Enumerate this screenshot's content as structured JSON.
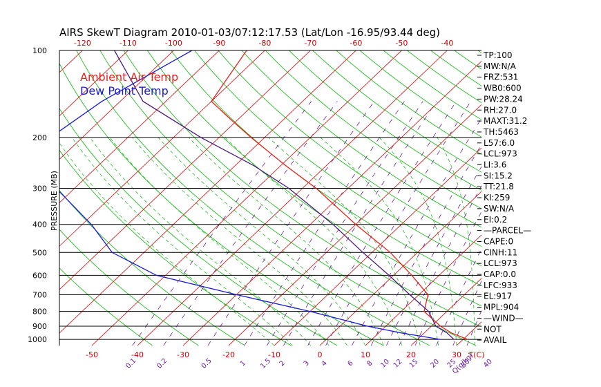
{
  "title": "AIRS SkewT Diagram 2010-01-03/07:12:17.53 (Lat/Lon -16.95/93.44 deg)",
  "ylabel": "PRESSURE (MB)",
  "legend": {
    "air": "Ambient Air Temp",
    "dew": "Dew Point Temp"
  },
  "colors": {
    "air": "#e8201a",
    "dew": "#1a1ad6",
    "parcel": "#4b1a7a",
    "isotherm": "#d42020",
    "dry_adiabat": "#22bb22",
    "moist_adiabat": "#22bb22",
    "mixing_ratio": "#6a1b9a",
    "isobar": "#000000"
  },
  "stats": [
    "TP:100",
    "MW:N/A",
    "FRZ:531",
    "WB0:600",
    "PW:28.24",
    "RH:27.0",
    "MAXT:31.2",
    "TH:5463",
    "L57:6.0",
    "LCL:973",
    "LI:3.6",
    "SI:15.2",
    "TT:21.8",
    "KI:259",
    "SW:N/A",
    "EI:0.2",
    "—PARCEL—",
    "CAPE:0",
    "CINH:11",
    "LCL:973",
    "CAP:0.0",
    "LFC:933",
    "EL:917",
    "MPL:904",
    "—WIND—",
    "NOT",
    "AVAIL"
  ],
  "chart_data": {
    "type": "line",
    "title": "AIRS SkewT Diagram 2010-01-03/07:12:17.53 (Lat/Lon -16.95/93.44 deg)",
    "ylabel": "PRESSURE (MB)",
    "xlabel": "T(C)",
    "y_scale": "log",
    "ylim": [
      1050,
      100
    ],
    "pressure_ticks": [
      "100",
      "200",
      "300",
      "400",
      "500",
      "600",
      "700",
      "800",
      "900",
      "1000"
    ],
    "top_temp_ticks": [
      "-120",
      "-110",
      "-100",
      "-90",
      "-80",
      "-70",
      "-60",
      "-50",
      "-40"
    ],
    "bottom_temp_ticks": [
      "-50",
      "-40",
      "-30",
      "-20",
      "-10",
      "0",
      "10",
      "20",
      "30",
      "T(C)"
    ],
    "mixing_ratio_ticks": [
      "0.1",
      "0.2",
      "0.5",
      "1",
      "1.5",
      "2",
      "3",
      "4",
      "6",
      "8",
      "10",
      "12",
      "15",
      "20",
      "25",
      "30",
      "40",
      "Q(g/kg)"
    ],
    "grid": true,
    "series": [
      {
        "name": "Ambient Air Temp",
        "points": [
          {
            "p": 100,
            "t": -84
          },
          {
            "p": 150,
            "t": -80
          },
          {
            "p": 175,
            "t": -71
          },
          {
            "p": 200,
            "t": -63
          },
          {
            "p": 250,
            "t": -49
          },
          {
            "p": 300,
            "t": -37
          },
          {
            "p": 400,
            "t": -20
          },
          {
            "p": 500,
            "t": -6
          },
          {
            "p": 600,
            "t": 4
          },
          {
            "p": 700,
            "t": 12
          },
          {
            "p": 800,
            "t": 15
          },
          {
            "p": 900,
            "t": 22
          },
          {
            "p": 950,
            "t": 26
          },
          {
            "p": 1000,
            "t": 31
          }
        ]
      },
      {
        "name": "Dew Point Temp",
        "points": [
          {
            "p": 100,
            "t": -96
          },
          {
            "p": 150,
            "t": -104
          },
          {
            "p": 200,
            "t": -107
          },
          {
            "p": 250,
            "t": -100
          },
          {
            "p": 300,
            "t": -94
          },
          {
            "p": 400,
            "t": -78
          },
          {
            "p": 500,
            "t": -67
          },
          {
            "p": 600,
            "t": -52
          },
          {
            "p": 700,
            "t": -30
          },
          {
            "p": 800,
            "t": -10
          },
          {
            "p": 900,
            "t": 6
          },
          {
            "p": 950,
            "t": 15
          },
          {
            "p": 1000,
            "t": 25
          }
        ]
      },
      {
        "name": "",
        "points": [
          {
            "p": 100,
            "t": -113
          },
          {
            "p": 150,
            "t": -95
          },
          {
            "p": 200,
            "t": -74
          },
          {
            "p": 250,
            "t": -56
          },
          {
            "p": 300,
            "t": -43
          },
          {
            "p": 400,
            "t": -25
          },
          {
            "p": 500,
            "t": -12
          },
          {
            "p": 600,
            "t": -1
          },
          {
            "p": 700,
            "t": 8
          },
          {
            "p": 800,
            "t": 16
          },
          {
            "p": 900,
            "t": 21
          },
          {
            "p": 950,
            "t": 25
          },
          {
            "p": 1000,
            "t": 28
          }
        ]
      }
    ]
  }
}
